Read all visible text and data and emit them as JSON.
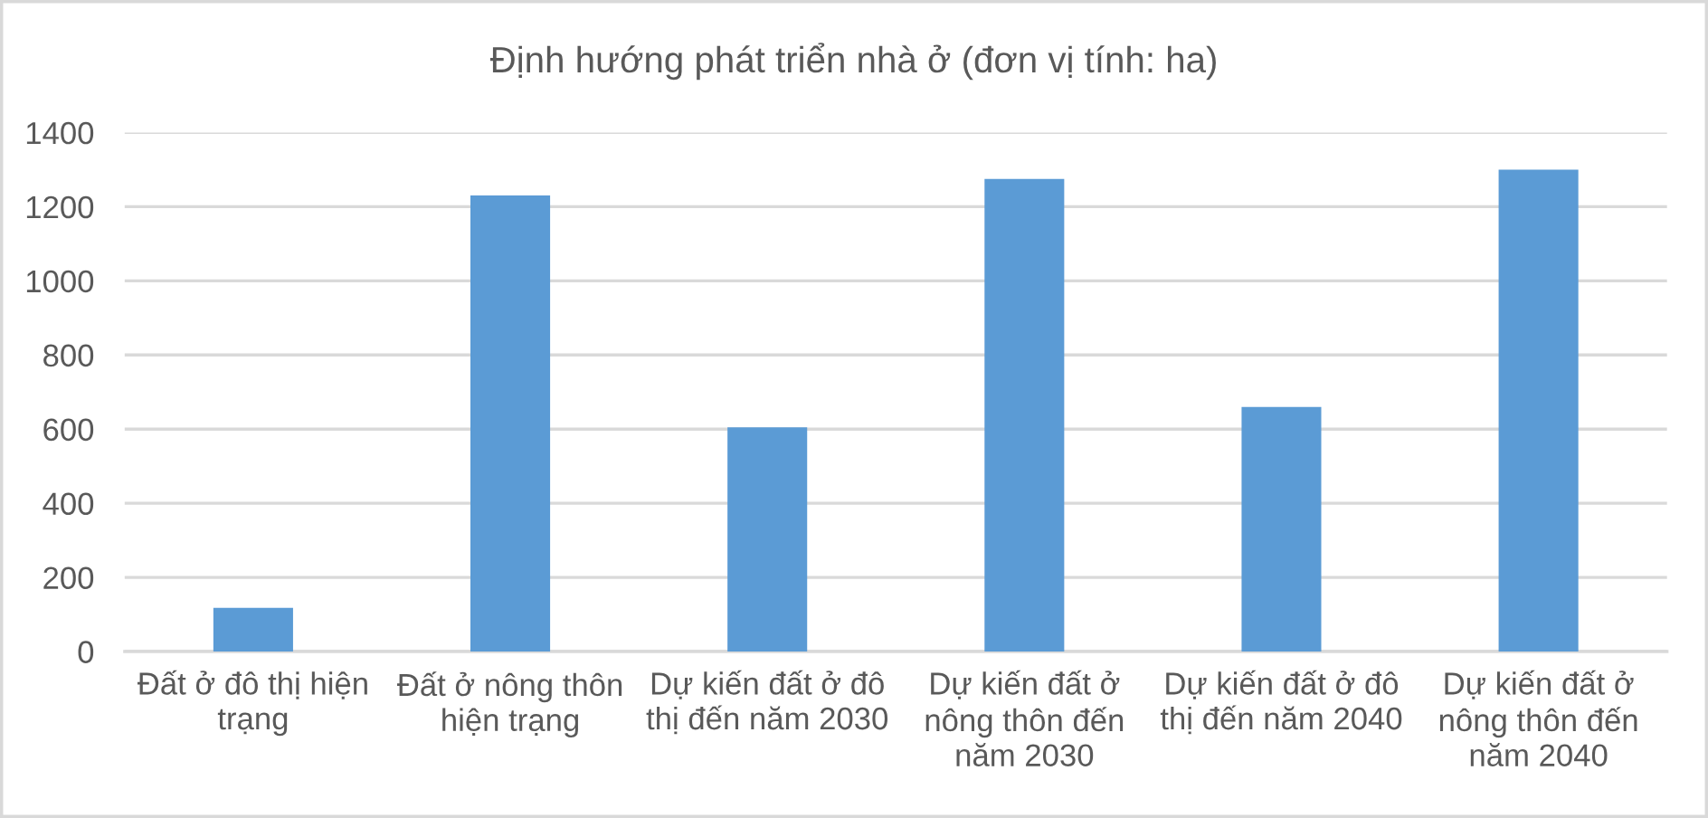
{
  "chart_data": {
    "type": "bar",
    "title": "Định hướng phát triển nhà ở (đơn vị tính: ha)",
    "categories": [
      "Đất ở đô thị hiện trạng",
      "Đất ở nông thôn hiện trạng",
      "Dự kiến đất ở đô thị đến năm 2030",
      "Dự kiến đất ở nông thôn đến năm 2030",
      "Dự kiến đất ở đô thị đến năm 2040",
      "Dự kiến đất ở nông thôn đến năm 2040"
    ],
    "values": [
      118,
      1230,
      605,
      1275,
      660,
      1300
    ],
    "color": "#5b9bd5",
    "ylim": [
      0,
      1400
    ],
    "yticks": [
      0,
      200,
      400,
      600,
      800,
      1000,
      1200,
      1400
    ],
    "grid": "y",
    "legend": false
  }
}
